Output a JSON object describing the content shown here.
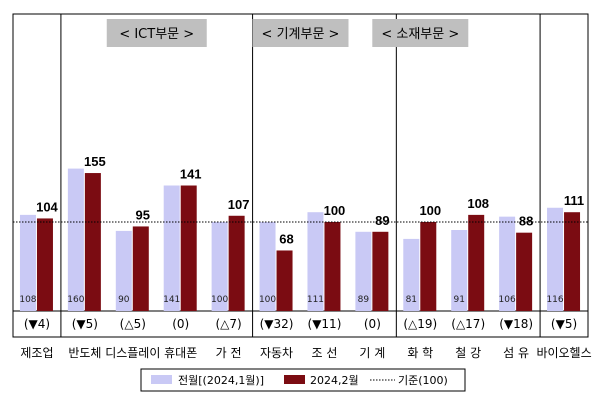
{
  "chart_data": {
    "type": "bar",
    "sections": [
      {
        "label": "< ICT부문 >",
        "start": 1,
        "end": 4
      },
      {
        "label": "< 기계부문 >",
        "start": 5,
        "end": 6
      },
      {
        "label": "< 소재부문 >",
        "start": 7,
        "end": 9
      }
    ],
    "categories": [
      "제조업",
      "반도체",
      "디스플레이",
      "휴대폰",
      "가 전",
      "자동차",
      "조 선",
      "기 계",
      "화 학",
      "철 강",
      "섬 유",
      "바이오헬스"
    ],
    "series": [
      {
        "name": "전월[(2024,1월)]",
        "color": "#c9c9f5",
        "values": [
          108,
          160,
          90,
          141,
          100,
          100,
          111,
          89,
          81,
          91,
          106,
          116
        ]
      },
      {
        "name": "2024,2월",
        "color": "#7b0c12",
        "values": [
          104,
          155,
          95,
          141,
          107,
          68,
          100,
          89,
          100,
          108,
          88,
          111
        ]
      }
    ],
    "changes": [
      "(▼4)",
      "(▼5)",
      "(△5)",
      "(0)",
      "(△7)",
      "(▼32)",
      "(▼11)",
      "(0)",
      "(△19)",
      "(△17)",
      "(▼18)",
      "(▼5)"
    ],
    "baseline": {
      "label": "기준(100)",
      "value": 100
    },
    "ylim": [
      0,
      170
    ],
    "title": "",
    "xlabel": "",
    "ylabel": ""
  }
}
